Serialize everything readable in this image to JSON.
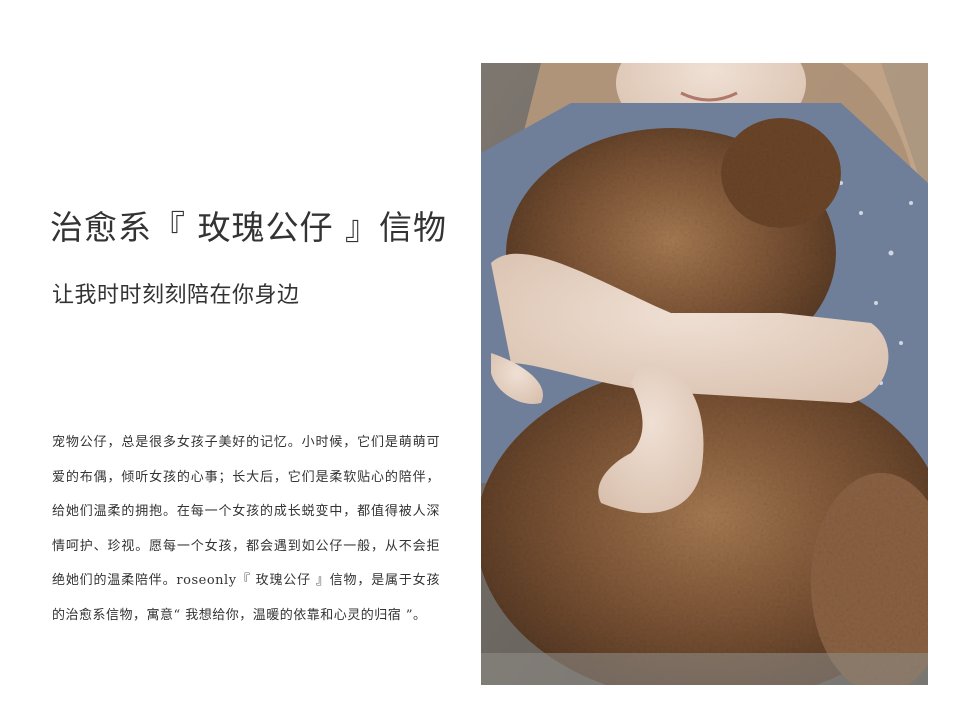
{
  "article": {
    "title": "治愈系『 玫瑰公仔 』信物",
    "subtitle": "让我时时刻刻陪在你身边",
    "body": "宠物公仔，总是很多女孩子美好的记忆。小时候，它们是萌萌可爱的布偶，倾听女孩的心事；长大后，它们是柔软贴心的陪伴，给她们温柔的拥抱。在每一个女孩的成长蜕变中，都值得被人深情呵护、珍视。愿每一个女孩，都会遇到如公仔一般，从不会拒绝她们的温柔陪伴。roseonly『 玫瑰公仔 』信物，是属于女孩的治愈系信物，寓意“ 我想给你，温暖的依靠和心灵的归宿 ”。"
  },
  "photo": {
    "subject": "girl-hugging-teddy-bear",
    "colors": {
      "background": "#6e6961",
      "bear_fur": "#7a5234",
      "bear_dark": "#4e3320",
      "bear_light": "#a67a52",
      "shirt": "#6f7f99",
      "skin": "#e6d2c4",
      "hair": "#b89a7c"
    }
  }
}
